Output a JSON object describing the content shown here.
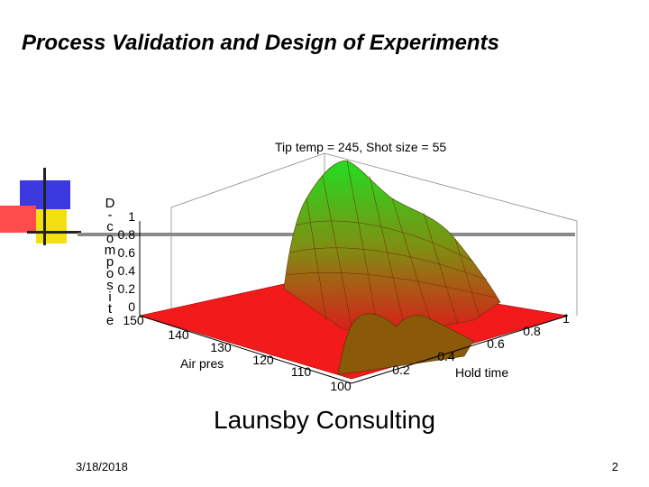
{
  "slide": {
    "title": "Process Validation and Design of Experiments",
    "footer_center": "Launsby Consulting",
    "date": "3/18/2018",
    "page_number": "2"
  },
  "plot": {
    "title": "Tip temp = 245, Shot size = 55",
    "zlabel": "Decomposite",
    "xlabel": "Air pres",
    "ylabel": "Hold time",
    "z_ticks": [
      "1",
      "0.8",
      "0.6",
      "0.4",
      "0.2",
      "0"
    ],
    "x_ticks": [
      "150",
      "140",
      "130",
      "120",
      "110",
      "100"
    ],
    "y_ticks": [
      "0.2",
      "0.4",
      "0.6",
      "0.8",
      "1"
    ],
    "colors": {
      "low": "#ff1a1a",
      "high": "#22dd22"
    }
  }
}
